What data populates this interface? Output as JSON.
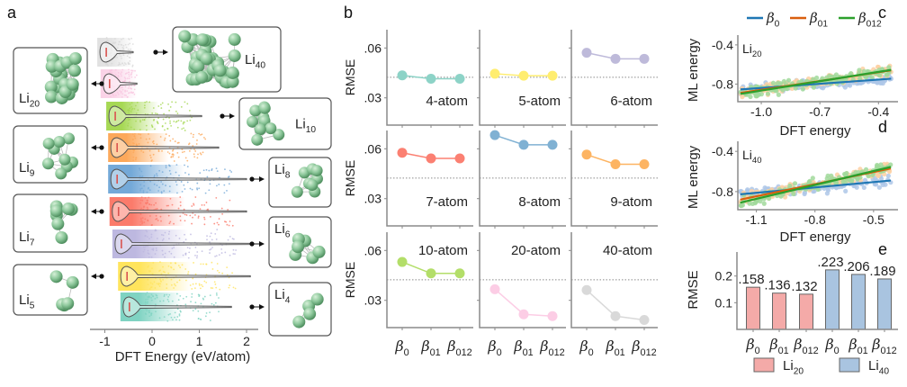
{
  "panel_letters": [
    "a",
    "b",
    "c",
    "d",
    "e"
  ],
  "colors": {
    "axis": "#8a8a8a",
    "reference_line": "#8a8a8a",
    "atom": "#7fbf8a",
    "beta0": "#1f77b4",
    "beta01": "#d95f0e",
    "beta012": "#2ca02c",
    "beta0_points": "#aec7e8",
    "beta01_points": "#fdd0a2",
    "beta012_points": "#a1d99b",
    "li20_bar": "#f4aaa8",
    "li40_bar": "#a9c4e0"
  },
  "chart_data": [
    {
      "panel": "a",
      "type": "violin",
      "xlabel": "DFT Energy (eV/atom)",
      "xticks": [
        "-1",
        "0",
        "1",
        "2"
      ],
      "xtick_values": [
        -1,
        0,
        1,
        2
      ],
      "xlim": [
        -1.3,
        2.3
      ],
      "series": [
        {
          "cluster": {
            "base": "Li",
            "sub": "40"
          },
          "atoms": 40,
          "color": "#d9d9d9",
          "min": -1.16,
          "max": -0.4,
          "side": "right"
        },
        {
          "cluster": {
            "base": "Li",
            "sub": "20"
          },
          "atoms": 20,
          "color": "#f9c6e0",
          "min": -1.09,
          "max": -0.32,
          "side": "left"
        },
        {
          "cluster": {
            "base": "Li",
            "sub": "10"
          },
          "atoms": 10,
          "color": "#a6d854",
          "min": -0.97,
          "max": 1.05,
          "side": "right"
        },
        {
          "cluster": {
            "base": "Li",
            "sub": "9"
          },
          "atoms": 9,
          "color": "#fca85a",
          "min": -0.93,
          "max": 1.41,
          "side": "left"
        },
        {
          "cluster": {
            "base": "Li",
            "sub": "8"
          },
          "atoms": 8,
          "color": "#74a9d8",
          "min": -0.93,
          "max": 2.0,
          "side": "right"
        },
        {
          "cluster": {
            "base": "Li",
            "sub": "7"
          },
          "atoms": 7,
          "color": "#fb7b6b",
          "min": -0.9,
          "max": 2.0,
          "side": "left"
        },
        {
          "cluster": {
            "base": "Li",
            "sub": "6"
          },
          "atoms": 6,
          "color": "#bdb8e0",
          "min": -0.84,
          "max": 2.08,
          "side": "right"
        },
        {
          "cluster": {
            "base": "Li",
            "sub": "5"
          },
          "atoms": 5,
          "color": "#ffe45c",
          "min": -0.72,
          "max": 2.08,
          "side": "left"
        },
        {
          "cluster": {
            "base": "Li",
            "sub": "4"
          },
          "atoms": 4,
          "color": "#7fd3c2",
          "min": -0.67,
          "max": 1.68,
          "side": "right"
        }
      ]
    },
    {
      "panel": "b",
      "type": "line",
      "ylabel": "RMSE",
      "yticks": [
        ".06",
        ".03"
      ],
      "ytick_values": [
        0.06,
        0.03
      ],
      "ylim": [
        0.0136,
        0.071
      ],
      "reference_line": 0.0424,
      "x": [
        {
          "base": "β",
          "sub": "0"
        },
        {
          "base": "β",
          "sub": "01"
        },
        {
          "base": "β",
          "sub": "012"
        }
      ],
      "series": [
        {
          "name": "4-atom",
          "color": "#8dd3c7",
          "values": [
            0.0435,
            0.0415,
            0.0415
          ]
        },
        {
          "name": "5-atom",
          "color": "#ffed6f",
          "values": [
            0.0445,
            0.0433,
            0.0433
          ]
        },
        {
          "name": "6-atom",
          "color": "#bebada",
          "values": [
            0.0571,
            0.0535,
            0.0535
          ]
        },
        {
          "name": "7-atom",
          "color": "#fb8072",
          "values": [
            0.0576,
            0.0542,
            0.0542
          ]
        },
        {
          "name": "8-atom",
          "color": "#80b1d3",
          "values": [
            0.0682,
            0.0624,
            0.0624
          ]
        },
        {
          "name": "9-atom",
          "color": "#fdb462",
          "values": [
            0.0565,
            0.0507,
            0.0507
          ]
        },
        {
          "name": "10-atom",
          "color": "#b3de69",
          "values": [
            0.0531,
            0.0462,
            0.0462
          ]
        },
        {
          "name": "20-atom",
          "color": "#fccde5",
          "values": [
            0.0367,
            0.0216,
            0.0205
          ]
        },
        {
          "name": "40-atom",
          "color": "#d9d9d9",
          "values": [
            0.0362,
            0.0205,
            0.0182
          ]
        }
      ]
    },
    {
      "panel": "c",
      "type": "scatter",
      "annotation": {
        "base": "Li",
        "sub": "20"
      },
      "xlabel": "DFT energy",
      "ylabel": "ML energy",
      "xticks": [
        "-1.0",
        "-0.7",
        "-0.4"
      ],
      "xtick_values": [
        -1.0,
        -0.7,
        -0.4
      ],
      "yticks": [
        "-0.4",
        "-0.8"
      ],
      "ytick_values": [
        -0.4,
        -0.8
      ],
      "xlim": [
        -1.12,
        -0.3
      ],
      "ylim": [
        -0.98,
        -0.3
      ],
      "legend": "top",
      "series": [
        {
          "name": {
            "base": "β",
            "sub": "0"
          },
          "fit_x": [
            -1.106,
            -0.335
          ],
          "fit_y": [
            -0.855,
            -0.745
          ]
        },
        {
          "name": {
            "base": "β",
            "sub": "01"
          },
          "fit_x": [
            -1.106,
            -0.335
          ],
          "fit_y": [
            -0.89,
            -0.66
          ]
        },
        {
          "name": {
            "base": "β",
            "sub": "012"
          },
          "fit_x": [
            -1.106,
            -0.335
          ],
          "fit_y": [
            -0.9,
            -0.655
          ]
        }
      ]
    },
    {
      "panel": "d",
      "type": "scatter",
      "annotation": {
        "base": "Li",
        "sub": "40"
      },
      "xlabel": "DFT energy",
      "ylabel": "ML energy",
      "xticks": [
        "-1.1",
        "-0.8",
        "-0.5"
      ],
      "xtick_values": [
        -1.1,
        -0.8,
        -0.5
      ],
      "yticks": [
        "-0.4",
        "-0.8"
      ],
      "ytick_values": [
        -0.4,
        -0.8
      ],
      "xlim": [
        -1.195,
        -0.375
      ],
      "ylim": [
        -0.98,
        -0.3
      ],
      "series": [
        {
          "name": {
            "base": "β",
            "sub": "0"
          },
          "fit_x": [
            -1.183,
            -0.412
          ],
          "fit_y": [
            -0.827,
            -0.69
          ]
        },
        {
          "name": {
            "base": "β",
            "sub": "01"
          },
          "fit_x": [
            -1.183,
            -0.412
          ],
          "fit_y": [
            -0.88,
            -0.57
          ]
        },
        {
          "name": {
            "base": "β",
            "sub": "012"
          },
          "fit_x": [
            -1.183,
            -0.412
          ],
          "fit_y": [
            -0.91,
            -0.555
          ]
        }
      ]
    },
    {
      "panel": "e",
      "type": "bar",
      "ylabel": "RMSE",
      "yticks": [
        "0.2",
        "0.1"
      ],
      "ytick_values": [
        0.2,
        0.1
      ],
      "ylim": [
        0,
        0.29
      ],
      "categories": [
        {
          "base": "β",
          "sub": "0"
        },
        {
          "base": "β",
          "sub": "01"
        },
        {
          "base": "β",
          "sub": "012"
        },
        {
          "base": "β",
          "sub": "0"
        },
        {
          "base": "β",
          "sub": "01"
        },
        {
          "base": "β",
          "sub": "012"
        }
      ],
      "values": [
        0.158,
        0.136,
        0.132,
        0.223,
        0.206,
        0.189
      ],
      "data_labels": [
        ".158",
        ".136",
        ".132",
        ".223",
        ".206",
        ".189"
      ],
      "groups": [
        "Li20",
        "Li20",
        "Li20",
        "Li40",
        "Li40",
        "Li40"
      ],
      "legend": "bottom",
      "legend_entries": [
        {
          "base": "Li",
          "sub": "20",
          "color": "#f4aaa8"
        },
        {
          "base": "Li",
          "sub": "40",
          "color": "#a9c4e0"
        }
      ]
    }
  ]
}
